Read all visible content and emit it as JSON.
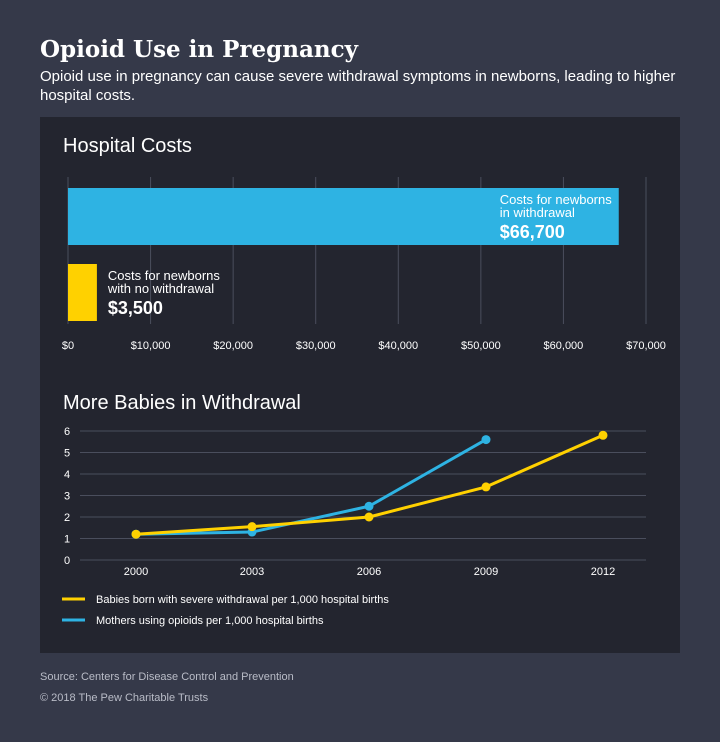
{
  "header": {
    "title": "Opioid Use in Pregnancy",
    "subtitle": "Opioid use in pregnancy can cause severe withdrawal symptoms in newborns, leading to higher hospital costs."
  },
  "chart_data": [
    {
      "type": "bar",
      "title": "Hospital Costs",
      "orientation": "horizontal",
      "categories": [
        "Costs for newborns in withdrawal",
        "Costs for newborns with no withdrawal"
      ],
      "label_lines": [
        [
          "Costs for newborns",
          "in withdrawal"
        ],
        [
          "Costs for newborns",
          "with no withdrawal"
        ]
      ],
      "values": [
        66700,
        3500
      ],
      "value_labels": [
        "$66,700",
        "$3,500"
      ],
      "colors": [
        "#2eb3e3",
        "#ffd100"
      ],
      "xlim": [
        0,
        70000
      ],
      "x_ticks": [
        0,
        10000,
        20000,
        30000,
        40000,
        50000,
        60000,
        70000
      ],
      "x_tick_labels": [
        "$0",
        "$10,000",
        "$20,000",
        "$30,000",
        "$40,000",
        "$50,000",
        "$60,000",
        "$70,000"
      ],
      "grid": true
    },
    {
      "type": "line",
      "title": "More Babies in Withdrawal",
      "x": [
        2000,
        2003,
        2006,
        2009,
        2012
      ],
      "x_tick_labels": [
        "2000",
        "2003",
        "2006",
        "2009",
        "2012"
      ],
      "ylim": [
        0,
        6
      ],
      "y_ticks": [
        0,
        1,
        2,
        3,
        4,
        5,
        6
      ],
      "series": [
        {
          "name": "Babies born with severe withdrawal per 1,000 hospital births",
          "color": "#ffd100",
          "x": [
            2000,
            2003,
            2006,
            2009,
            2012
          ],
          "values": [
            1.2,
            1.55,
            2.0,
            3.4,
            5.8
          ]
        },
        {
          "name": "Mothers using opioids per 1,000 hospital births",
          "color": "#2eb3e3",
          "x": [
            2000,
            2003,
            2006,
            2009
          ],
          "values": [
            1.2,
            1.3,
            2.5,
            5.6
          ]
        }
      ],
      "legend_placement": "bottom",
      "grid": true
    }
  ],
  "footer": {
    "source": "Source: Centers for Disease Control and Prevention",
    "copyright": "© 2018 The Pew Charitable Trusts"
  }
}
